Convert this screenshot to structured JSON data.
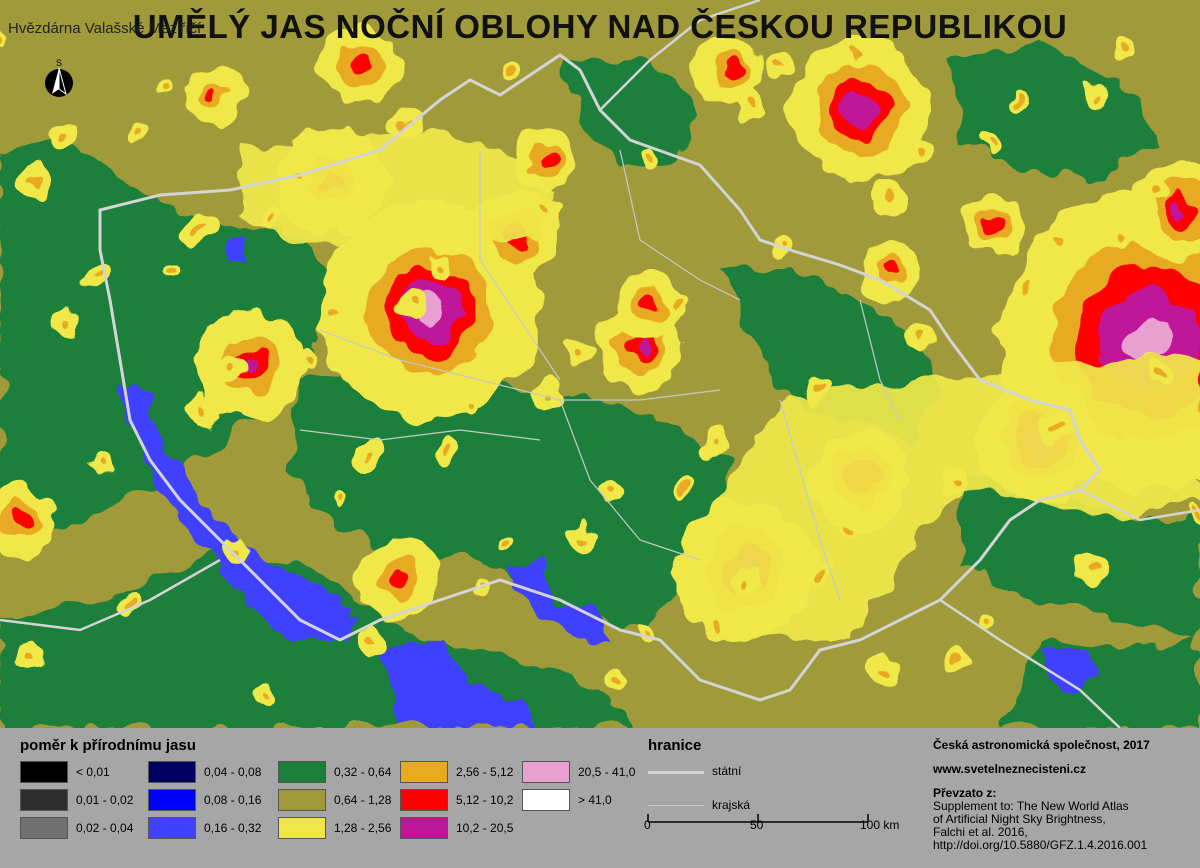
{
  "header": {
    "title": "UMĚLÝ JAS NOČNÍ OBLOHY NAD ČESKOU REPUBLIKOU",
    "brand": "Hvězdárna Valašské Meziříčí",
    "north_label": "S"
  },
  "colors": {
    "green": "#1a7f3a",
    "olive": "#a09a3a",
    "yellow": "#f0e84a",
    "orange": "#e8aa20",
    "red": "#ff0000",
    "magenta": "#c0179a",
    "pink": "#e8a0d0",
    "white": "#ffffff",
    "blue": "#4040ff",
    "border_state": "#d4d4d4",
    "border_region": "#c8c8c8"
  },
  "legend": {
    "heading": "poměr k přírodnímu jasu",
    "items": [
      {
        "label": "< 0,01",
        "color": "#000000"
      },
      {
        "label": "0,01 - 0,02",
        "color": "#2e2e2e"
      },
      {
        "label": "0,02 - 0,04",
        "color": "#707070"
      },
      {
        "label": "0,04 - 0,08",
        "color": "#000060"
      },
      {
        "label": "0,08 - 0,16",
        "color": "#0000ff"
      },
      {
        "label": "0,16 - 0,32",
        "color": "#4040ff"
      },
      {
        "label": "0,32 - 0,64",
        "color": "#1a7f3a"
      },
      {
        "label": "0,64 - 1,28",
        "color": "#a09a3a"
      },
      {
        "label": "1,28 - 2,56",
        "color": "#f0e84a"
      },
      {
        "label": "2,56 - 5,12",
        "color": "#e8aa20"
      },
      {
        "label": "5,12 - 10,2",
        "color": "#ff0000"
      },
      {
        "label": "10,2 - 20,5",
        "color": "#c0179a"
      },
      {
        "label": "20,5 - 41,0",
        "color": "#e8a0d0"
      },
      {
        "label": "> 41,0",
        "color": "#ffffff"
      }
    ]
  },
  "borders": {
    "heading": "hranice",
    "state_label": "státní",
    "region_label": "krajská"
  },
  "scale": {
    "ticks": [
      "0",
      "50",
      "100 km"
    ]
  },
  "credits": {
    "society": "Česká astronomická společnost, 2017",
    "website": "www.svetelneznecisteni.cz",
    "source_heading": "Převzato z:",
    "source_lines": [
      "Supplement to: The New World Atlas",
      "of Artificial Night Sky Brightness,",
      "Falchi et al. 2016,",
      "http://doi.org/10.5880/GFZ.1.4.2016.001"
    ]
  }
}
